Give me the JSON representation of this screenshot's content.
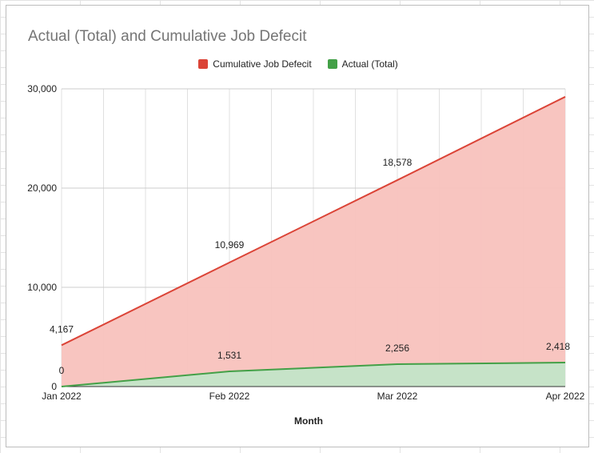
{
  "chart_data": {
    "type": "area",
    "title": "Actual (Total) and Cumulative Job Defecit",
    "xlabel": "Month",
    "ylabel": "",
    "categories": [
      "Jan 2022",
      "Feb 2022",
      "Mar 2022",
      "Apr 2022"
    ],
    "ylim": [
      0,
      30000
    ],
    "yticks": [
      0,
      10000,
      20000,
      30000
    ],
    "ytick_labels": [
      "0",
      "10,000",
      "20,000",
      "30,000"
    ],
    "grid": true,
    "legend_position": "top",
    "series": [
      {
        "name": "Cumulative Job Defecit",
        "values": [
          4167,
          12500,
          20800,
          29200
        ],
        "line_color": "#db4437",
        "fill_color": "#f8c2bd",
        "annotations": [
          {
            "index": 0,
            "text": "4,167"
          },
          {
            "index": 1,
            "text": "10,969"
          },
          {
            "index": 2,
            "text": "18,578"
          }
        ]
      },
      {
        "name": "Actual (Total)",
        "values": [
          0,
          1531,
          2256,
          2418
        ],
        "line_color": "#43a047",
        "fill_color": "#c3e5c8",
        "annotations": [
          {
            "index": 0,
            "text": "0"
          },
          {
            "index": 1,
            "text": "1,531"
          },
          {
            "index": 2,
            "text": "2,256"
          },
          {
            "index": 3,
            "text": "2,418"
          }
        ]
      }
    ]
  }
}
